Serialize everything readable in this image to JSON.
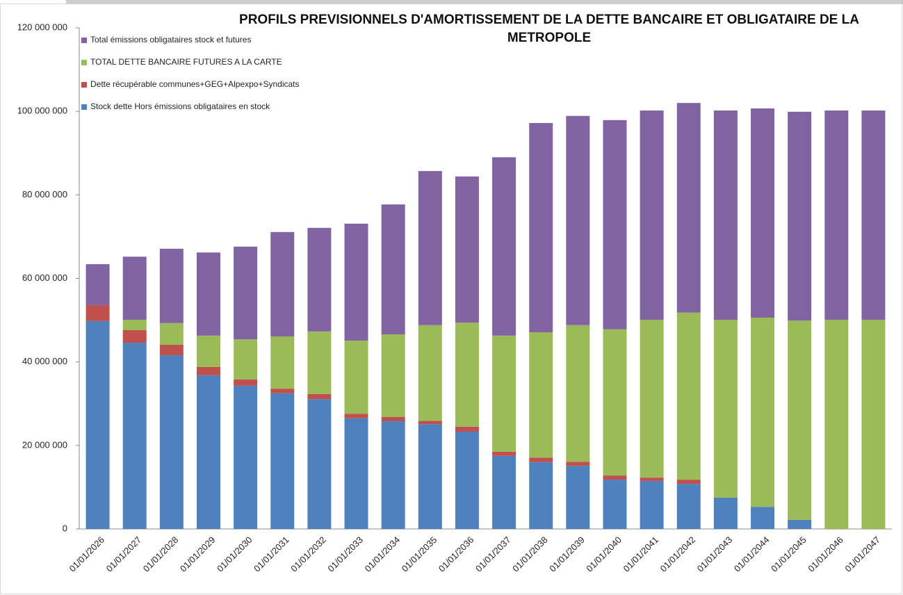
{
  "chart_data": {
    "type": "stacked_bar",
    "title": "PROFILS PREVISIONNELS D'AMORTISSEMENT DE LA DETTE BANCAIRE ET OBLIGATAIRE DE LA METROPOLE",
    "categories": [
      "01/01/2026",
      "01/01/2027",
      "01/01/2028",
      "01/01/2029",
      "01/01/2030",
      "01/01/2031",
      "01/01/2032",
      "01/01/2033",
      "01/01/2034",
      "01/01/2035",
      "01/01/2036",
      "01/01/2037",
      "01/01/2038",
      "01/01/2039",
      "01/01/2040",
      "01/01/2041",
      "01/01/2042",
      "01/01/2043",
      "01/01/2044",
      "01/01/2045",
      "01/01/2046",
      "01/01/2047"
    ],
    "series": [
      {
        "name": "Stock dette Hors émissions obligataires en stock",
        "color": "#4f81bd",
        "values": [
          49800000,
          44600000,
          41600000,
          36800000,
          34300000,
          32500000,
          31100000,
          26500000,
          25800000,
          25100000,
          23300000,
          17500000,
          16000000,
          15100000,
          11800000,
          11500000,
          10800000,
          7500000,
          5300000,
          2200000,
          0,
          0
        ]
      },
      {
        "name": "Dette récupérable communes+GEG+Alpexpo+Syndicats",
        "color": "#c0504d",
        "values": [
          3800000,
          3000000,
          2500000,
          2000000,
          1500000,
          1100000,
          1200000,
          1100000,
          1000000,
          800000,
          1200000,
          1000000,
          1100000,
          1000000,
          1000000,
          800000,
          1000000,
          0,
          0,
          0,
          0,
          0
        ]
      },
      {
        "name": "TOTAL DETTE BANCAIRE FUTURES A LA CARTE",
        "color": "#9bbb59",
        "values": [
          0,
          2500000,
          5200000,
          7500000,
          9600000,
          12500000,
          15000000,
          17500000,
          19800000,
          22900000,
          24900000,
          27800000,
          30000000,
          32700000,
          35000000,
          37800000,
          40000000,
          42600000,
          45300000,
          47700000,
          50100000,
          50100000
        ]
      },
      {
        "name": "Total émissions obligataires stock et futures",
        "color": "#8064a2",
        "values": [
          9800000,
          15100000,
          17800000,
          19900000,
          22200000,
          25000000,
          24800000,
          28000000,
          31100000,
          36900000,
          35000000,
          42700000,
          50100000,
          50100000,
          50100000,
          50100000,
          50200000,
          50100000,
          50100000,
          50000000,
          50100000,
          50100000
        ]
      }
    ],
    "ylim": [
      0,
      120000000
    ],
    "yticks": [
      0,
      {
        "value": 20000000,
        "label": "20 000 000"
      },
      {
        "value": 40000000,
        "label": "40 000 000"
      },
      {
        "value": 60000000,
        "label": "60 000 000"
      },
      {
        "value": 80000000,
        "label": "80 000 000"
      },
      {
        "value": 100000000,
        "label": "100 000 000"
      },
      {
        "value": 120000000,
        "label": "120 000 000"
      }
    ],
    "legend": "top-left"
  }
}
